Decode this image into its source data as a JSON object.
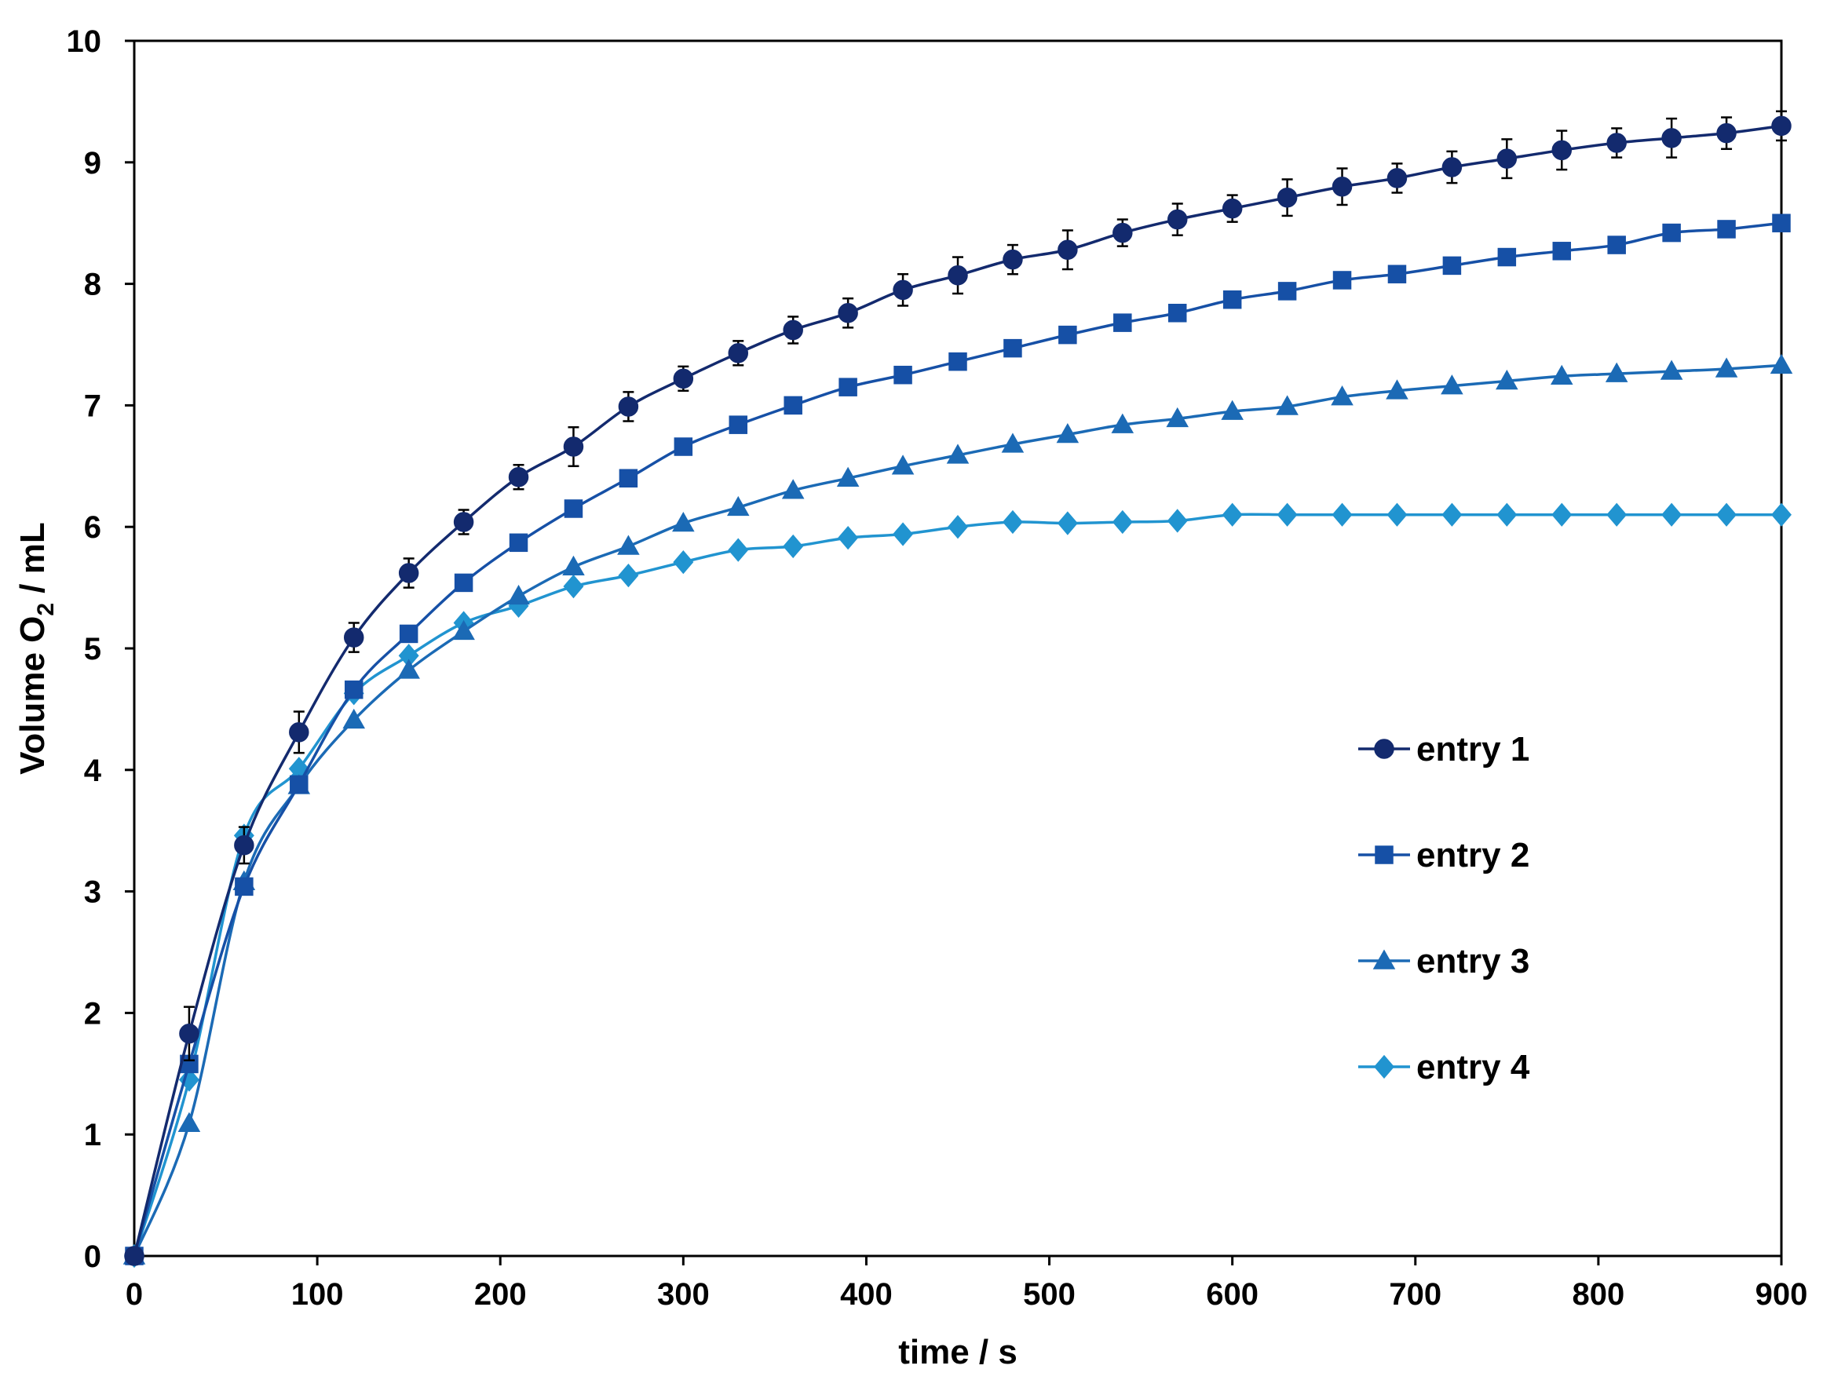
{
  "chart_data": {
    "type": "line",
    "xlabel": "time / s",
    "ylabel_parts": {
      "pre": "Volume O",
      "sub": "2",
      "post": " / mL"
    },
    "xlim": [
      0,
      900
    ],
    "ylim": [
      0,
      10
    ],
    "xticks": [
      0,
      100,
      200,
      300,
      400,
      500,
      600,
      700,
      800,
      900
    ],
    "yticks": [
      0,
      1,
      2,
      3,
      4,
      5,
      6,
      7,
      8,
      9,
      10
    ],
    "x": [
      0,
      30,
      60,
      90,
      120,
      150,
      180,
      210,
      240,
      270,
      300,
      330,
      360,
      390,
      420,
      450,
      480,
      510,
      540,
      570,
      600,
      630,
      660,
      690,
      720,
      750,
      780,
      810,
      840,
      870,
      900
    ],
    "grid": false,
    "legend_position": "right",
    "series": [
      {
        "name": "entry 1",
        "marker": "circle",
        "color": "#132a6e",
        "values": [
          0,
          1.83,
          3.38,
          4.31,
          5.09,
          5.62,
          6.04,
          6.41,
          6.66,
          6.99,
          7.22,
          7.43,
          7.62,
          7.76,
          7.95,
          8.07,
          8.2,
          8.28,
          8.42,
          8.53,
          8.62,
          8.71,
          8.8,
          8.87,
          8.96,
          9.03,
          9.1,
          9.16,
          9.2,
          9.24,
          9.3
        ],
        "errors": [
          0,
          0.22,
          0.15,
          0.17,
          0.12,
          0.12,
          0.1,
          0.1,
          0.16,
          0.12,
          0.1,
          0.1,
          0.11,
          0.12,
          0.13,
          0.15,
          0.12,
          0.16,
          0.11,
          0.13,
          0.11,
          0.15,
          0.15,
          0.12,
          0.13,
          0.16,
          0.16,
          0.12,
          0.16,
          0.13,
          0.12
        ]
      },
      {
        "name": "entry 2",
        "marker": "square",
        "color": "#1650a6",
        "values": [
          0,
          1.58,
          3.04,
          3.88,
          4.66,
          5.12,
          5.54,
          5.87,
          6.15,
          6.4,
          6.66,
          6.84,
          7.0,
          7.15,
          7.25,
          7.36,
          7.47,
          7.58,
          7.68,
          7.76,
          7.87,
          7.94,
          8.03,
          8.08,
          8.15,
          8.22,
          8.27,
          8.32,
          8.42,
          8.45,
          8.5
        ]
      },
      {
        "name": "entry 3",
        "marker": "triangle",
        "color": "#1b6ab5",
        "values": [
          0,
          1.09,
          3.08,
          3.87,
          4.41,
          4.82,
          5.14,
          5.43,
          5.67,
          5.84,
          6.03,
          6.16,
          6.3,
          6.4,
          6.5,
          6.59,
          6.68,
          6.76,
          6.84,
          6.89,
          6.95,
          6.99,
          7.07,
          7.12,
          7.16,
          7.2,
          7.24,
          7.26,
          7.28,
          7.3,
          7.33
        ]
      },
      {
        "name": "entry 4",
        "marker": "diamond",
        "color": "#2194d0",
        "values": [
          0,
          1.45,
          3.46,
          4.01,
          4.63,
          4.94,
          5.21,
          5.35,
          5.51,
          5.6,
          5.71,
          5.81,
          5.84,
          5.91,
          5.94,
          6.0,
          6.04,
          6.03,
          6.04,
          6.05,
          6.1,
          6.1,
          6.1,
          6.1,
          6.1,
          6.1,
          6.1,
          6.1,
          6.1,
          6.1,
          6.1
        ]
      }
    ]
  }
}
